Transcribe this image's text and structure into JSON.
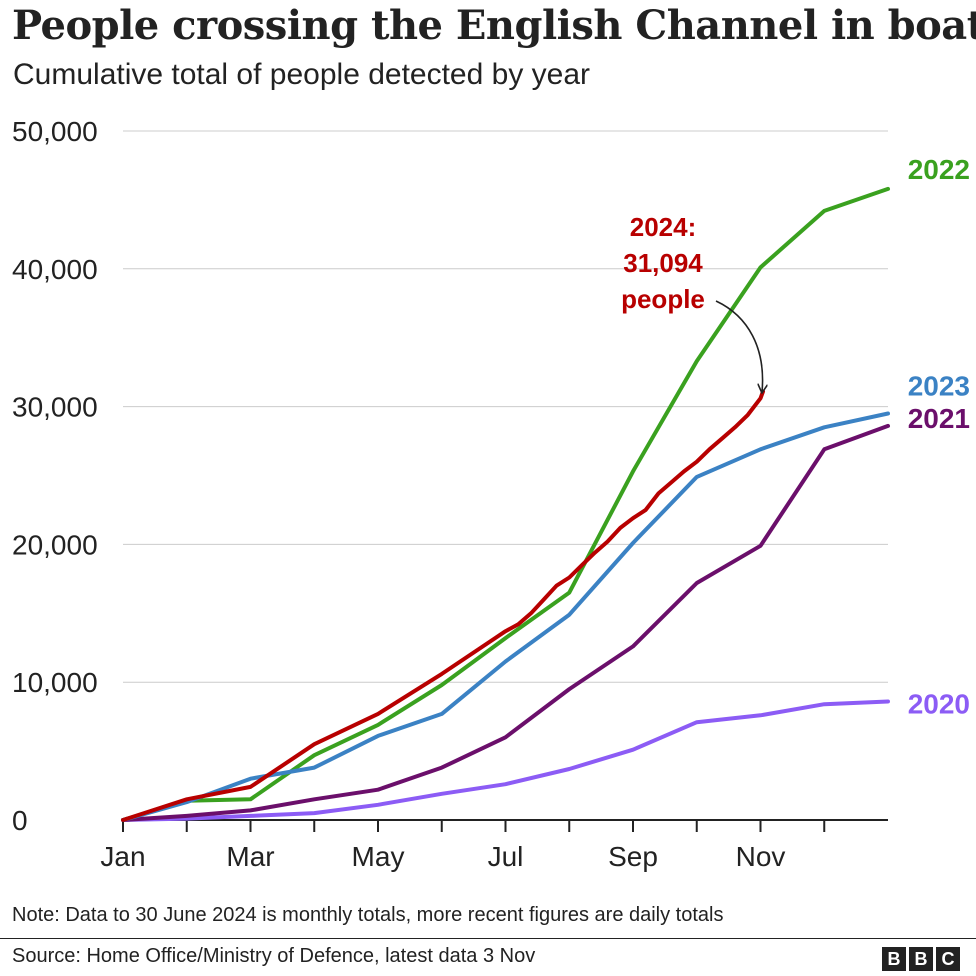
{
  "title": "People crossing the English Channel in boats",
  "subtitle": "Cumulative total of people detected by year",
  "footnote": "Note: Data to 30 June 2024 is monthly totals, more recent figures are daily totals",
  "source": "Source: Home Office/Ministry of Defence, latest data 3 Nov",
  "logo": [
    "B",
    "B",
    "C"
  ],
  "annotation": {
    "lines": [
      "2024:",
      "31,094",
      "people"
    ],
    "color": "#b80000"
  },
  "colors": {
    "grid": "#cccccc",
    "axis": "#222222",
    "text": "#222222"
  },
  "chart_data": {
    "type": "line",
    "title": "People crossing the English Channel in boats",
    "subtitle": "Cumulative total of people detected by year",
    "ylim": [
      0,
      50000
    ],
    "yticks": [
      0,
      10000,
      20000,
      30000,
      40000,
      50000
    ],
    "ytick_labels": [
      "0",
      "10,000",
      "20,000",
      "30,000",
      "40,000",
      "50,000"
    ],
    "xlim": [
      1,
      13
    ],
    "xticks": [
      1,
      3,
      5,
      7,
      9,
      11
    ],
    "xtick_labels": [
      "Jan",
      "Mar",
      "May",
      "Jul",
      "Sep",
      "Nov"
    ],
    "x_minor_ticks": [
      2,
      4,
      6,
      8,
      10,
      12
    ],
    "grid": true,
    "series": [
      {
        "name": "2020",
        "color": "#8c5cf5",
        "x": [
          1,
          2,
          3,
          4,
          5,
          6,
          7,
          8,
          9,
          10,
          11,
          12,
          13
        ],
        "y": [
          0,
          100,
          300,
          500,
          1100,
          1900,
          2600,
          3700,
          5100,
          7100,
          7600,
          8400,
          8600
        ]
      },
      {
        "name": "2021",
        "color": "#6b0f6b",
        "x": [
          1,
          2,
          3,
          4,
          5,
          6,
          7,
          8,
          9,
          10,
          11,
          12,
          13
        ],
        "y": [
          0,
          300,
          700,
          1500,
          2200,
          3800,
          6000,
          9500,
          12600,
          17200,
          19900,
          26900,
          28600
        ]
      },
      {
        "name": "2022",
        "color": "#3aa11f",
        "x": [
          1,
          2,
          3,
          4,
          5,
          6,
          7,
          8,
          9,
          10,
          11,
          12,
          13
        ],
        "y": [
          0,
          1400,
          1500,
          4700,
          6900,
          9800,
          13200,
          16500,
          25300,
          33300,
          40100,
          44200,
          45800
        ]
      },
      {
        "name": "2023",
        "color": "#3b82c4",
        "x": [
          1,
          2,
          3,
          4,
          5,
          6,
          7,
          8,
          9,
          10,
          11,
          12,
          13
        ],
        "y": [
          0,
          1300,
          3000,
          3800,
          6100,
          7700,
          11500,
          14900,
          20100,
          24900,
          26900,
          28500,
          29500
        ]
      },
      {
        "name": "2024",
        "color": "#b80000",
        "x": [
          1,
          2,
          3,
          4,
          5,
          6,
          7,
          7.2,
          7.4,
          7.6,
          7.8,
          8.0,
          8.2,
          8.4,
          8.6,
          8.8,
          9.0,
          9.2,
          9.4,
          9.6,
          9.8,
          10.0,
          10.2,
          10.4,
          10.6,
          10.8,
          11.0,
          11.04
        ],
        "y": [
          0,
          1500,
          2400,
          5500,
          7700,
          10600,
          13700,
          14200,
          15000,
          16000,
          17000,
          17600,
          18500,
          19400,
          20200,
          21200,
          21900,
          22500,
          23700,
          24500,
          25300,
          26000,
          26900,
          27700,
          28500,
          29400,
          30600,
          31094
        ]
      }
    ]
  }
}
